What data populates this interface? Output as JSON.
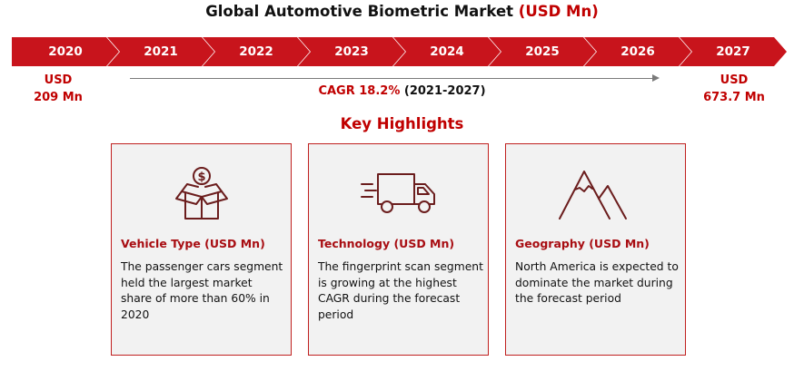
{
  "header": {
    "title_main": "Global Automotive Biometric Market",
    "title_accent": "(USD Mn)"
  },
  "timeline": {
    "years": [
      "2020",
      "2021",
      "2022",
      "2023",
      "2024",
      "2025",
      "2026",
      "2027"
    ]
  },
  "start_value": {
    "line1": "USD",
    "line2": "209 Mn"
  },
  "end_value": {
    "line1": "USD",
    "line2": "673.7 Mn"
  },
  "cagr": {
    "label": "CAGR 18.2%",
    "period": "(2021-2027)"
  },
  "highlights": {
    "title": "Key Highlights",
    "cards": [
      {
        "icon": "open-box-dollar-icon",
        "heading": "Vehicle Type (USD Mn)",
        "text": "The passenger cars segment held the largest market share of more than 60% in 2020"
      },
      {
        "icon": "delivery-truck-icon",
        "heading": "Technology (USD Mn)",
        "text": "The fingerprint scan segment is growing at the highest CAGR during the forecast period"
      },
      {
        "icon": "mountain-icon",
        "heading": "Geography (USD Mn)",
        "text": "North America is expected to dominate the market during the forecast period"
      }
    ]
  },
  "colors": {
    "accent": "#c8141c",
    "heading_red": "#a80d12",
    "card_bg": "#f2f2f2",
    "icon_stroke": "#6b1d1d"
  }
}
